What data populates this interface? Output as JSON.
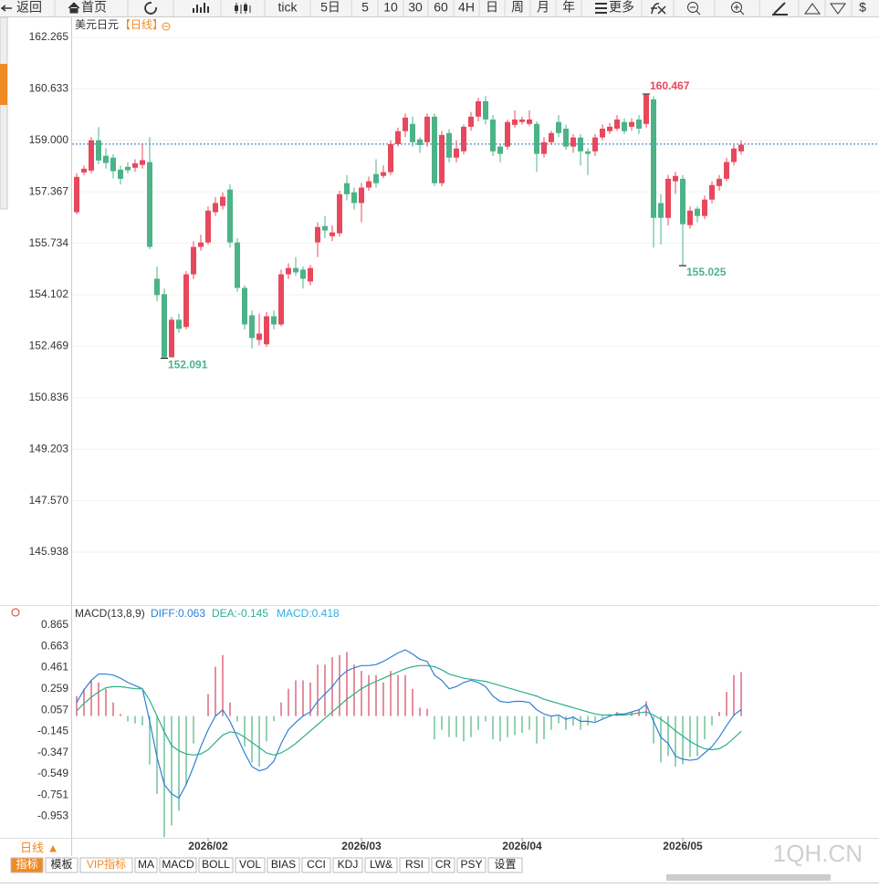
{
  "toolbar": [
    "返回",
    "首页",
    "tick",
    "5日",
    "5",
    "10",
    "30",
    "60",
    "4H",
    "日",
    "周",
    "月",
    "年",
    "更多",
    "$"
  ],
  "chart_data": [
    {
      "type": "candlestick",
      "title": "美元日元",
      "subtitle": "【日线】",
      "up_color": "#e8485c",
      "down_color": "#4cb388",
      "grid": true,
      "ylim": [
        144.26,
        162.9
      ],
      "yticks": [
        162.265,
        160.633,
        {
          "value": 159,
          "label": "159.000"
        },
        157.367,
        155.734,
        154.102,
        152.469,
        150.836,
        149.203,
        {
          "value": 147.57,
          "label": "147.570"
        },
        145.938
      ],
      "price_line": 158.88,
      "open": [
        156.72,
        157.98,
        158.04,
        159.0,
        158.51,
        158.45,
        158.07,
        158.16,
        158.13,
        158.22,
        158.31,
        154.61,
        154.12,
        152.12,
        153.31,
        153.08,
        154.75,
        155.62,
        155.76,
        156.72,
        156.92,
        157.44,
        155.76,
        154.32,
        153.45,
        152.67,
        152.53,
        153.42,
        153.16,
        154.75,
        154.95,
        154.9,
        154.52,
        155.76,
        156.28,
        155.96,
        156.05,
        157.64,
        157.35,
        157.01,
        157.5,
        157.93,
        157.87,
        157.99,
        158.88,
        159.29,
        159.52,
        159.03,
        158.94,
        159.75,
        157.64,
        159.23,
        158.45,
        158.65,
        159.43,
        159.75,
        160.24,
        159.66,
        158.8,
        158.8,
        159.49,
        159.58,
        159.52,
        159.52,
        158.57,
        158.94,
        159.58,
        159.37,
        158.8,
        159.09,
        158.65,
        158.65,
        159.09,
        159.29,
        159.37,
        159.58,
        159.43,
        159.66,
        159.52,
        160.3,
        157.01,
        156.54,
        157.7,
        157.78,
        156.31,
        156.83,
        156.6,
        157.12,
        157.55,
        157.78,
        158.31,
        158.65
      ],
      "high": [
        157.95,
        158.2,
        159.1,
        159.42,
        158.75,
        158.55,
        158.2,
        158.3,
        158.4,
        158.9,
        159.1,
        155.0,
        154.3,
        153.4,
        153.5,
        154.85,
        155.8,
        156.0,
        156.9,
        157.2,
        157.35,
        157.6,
        155.9,
        154.4,
        153.6,
        153.5,
        153.55,
        153.6,
        154.9,
        155.1,
        155.3,
        155.0,
        155.05,
        156.4,
        156.6,
        156.3,
        157.4,
        157.9,
        157.5,
        157.65,
        157.85,
        158.4,
        158.2,
        159.0,
        159.4,
        159.85,
        159.75,
        159.1,
        159.85,
        159.85,
        159.3,
        159.35,
        159.0,
        159.5,
        159.9,
        160.35,
        160.4,
        159.8,
        158.9,
        159.65,
        159.95,
        159.75,
        159.95,
        159.6,
        159.1,
        159.3,
        159.8,
        159.5,
        159.2,
        159.2,
        158.75,
        159.2,
        159.5,
        159.55,
        159.8,
        159.7,
        159.7,
        159.8,
        160.467,
        160.4,
        157.3,
        157.9,
        158.0,
        157.9,
        156.9,
        156.9,
        157.25,
        157.7,
        157.9,
        158.45,
        158.85,
        159.0
      ],
      "low": [
        156.65,
        157.9,
        157.95,
        158.25,
        158.1,
        157.8,
        157.6,
        157.95,
        158.0,
        158.1,
        155.55,
        153.9,
        152.091,
        152.1,
        152.9,
        153.0,
        154.6,
        155.5,
        155.7,
        156.6,
        156.8,
        155.6,
        154.2,
        153.0,
        152.4,
        152.5,
        152.45,
        153.0,
        153.1,
        154.6,
        154.7,
        154.3,
        154.4,
        155.3,
        155.9,
        155.8,
        155.95,
        157.1,
        156.8,
        156.4,
        157.4,
        157.5,
        157.8,
        157.9,
        158.8,
        159.1,
        158.8,
        158.6,
        158.8,
        157.55,
        157.55,
        158.3,
        158.3,
        158.55,
        159.3,
        159.6,
        159.5,
        158.5,
        158.3,
        158.7,
        159.4,
        159.5,
        159.45,
        158.0,
        158.45,
        158.85,
        159.1,
        158.7,
        158.6,
        158.2,
        157.9,
        158.5,
        159.0,
        159.2,
        159.3,
        159.2,
        159.3,
        159.2,
        159.4,
        155.6,
        155.7,
        156.3,
        157.3,
        155.025,
        156.2,
        156.4,
        156.5,
        157.0,
        157.4,
        157.7,
        158.2,
        158.55
      ],
      "close": [
        157.84,
        158.1,
        159.0,
        158.36,
        158.28,
        158.02,
        157.78,
        158.05,
        158.27,
        158.37,
        155.62,
        154.09,
        152.12,
        153.31,
        153.02,
        154.75,
        155.62,
        155.76,
        156.77,
        157.01,
        157.21,
        155.76,
        154.32,
        153.16,
        152.73,
        152.87,
        153.42,
        153.16,
        154.75,
        154.95,
        154.81,
        154.61,
        154.95,
        156.25,
        156.14,
        156.08,
        157.29,
        157.29,
        157.01,
        157.5,
        157.7,
        157.64,
        157.99,
        158.88,
        159.29,
        159.72,
        158.94,
        158.85,
        159.75,
        157.64,
        159.17,
        158.45,
        158.74,
        159.43,
        159.75,
        160.24,
        159.66,
        158.65,
        158.57,
        159.58,
        159.66,
        159.66,
        159.66,
        158.57,
        158.94,
        159.23,
        159.23,
        158.8,
        159.09,
        158.65,
        158.57,
        159.09,
        159.37,
        159.43,
        159.66,
        159.29,
        159.58,
        159.37,
        160.44,
        156.54,
        156.54,
        157.78,
        157.87,
        156.34,
        156.77,
        156.6,
        157.12,
        157.58,
        157.78,
        158.31,
        158.74,
        158.86
      ]
    },
    {
      "type": "macd",
      "title": "MACD(13,8,9)",
      "ylim": [
        -1.157,
        0.934
      ],
      "yticks": [
        0.865,
        0.663,
        0.461,
        0.259,
        0.057,
        -0.145,
        -0.347,
        -0.549,
        -0.751,
        -0.953
      ],
      "categories": [
        null,
        null,
        null,
        null,
        null,
        null,
        null,
        null,
        null,
        null,
        null,
        null,
        null,
        null,
        null,
        null,
        null,
        null,
        "2026/02",
        null,
        null,
        null,
        null,
        null,
        null,
        null,
        null,
        null,
        null,
        null,
        null,
        null,
        null,
        null,
        null,
        null,
        null,
        null,
        null,
        "2026/03",
        null,
        null,
        null,
        null,
        null,
        null,
        null,
        null,
        null,
        null,
        null,
        null,
        null,
        null,
        null,
        null,
        null,
        null,
        null,
        null,
        null,
        "2026/04",
        null,
        null,
        null,
        null,
        null,
        null,
        null,
        null,
        null,
        null,
        null,
        null,
        null,
        null,
        null,
        null,
        null,
        null,
        null,
        null,
        null,
        "2026/05",
        null,
        null,
        null,
        null,
        null,
        null,
        null,
        null
      ],
      "series": [
        {
          "name": "DIFF:0.063",
          "color": "#2f80d6",
          "values": [
            0.13,
            0.25,
            0.34,
            0.4,
            0.4,
            0.39,
            0.36,
            0.32,
            0.29,
            0.26,
            -0.05,
            -0.39,
            -0.65,
            -0.74,
            -0.78,
            -0.65,
            -0.48,
            -0.29,
            -0.13,
            0,
            0.06,
            -0.05,
            -0.2,
            -0.35,
            -0.48,
            -0.52,
            -0.5,
            -0.43,
            -0.26,
            -0.13,
            -0.06,
            0,
            0.04,
            0.14,
            0.21,
            0.28,
            0.37,
            0.43,
            0.46,
            0.48,
            0.48,
            0.49,
            0.52,
            0.56,
            0.6,
            0.63,
            0.59,
            0.54,
            0.52,
            0.39,
            0.34,
            0.26,
            0.28,
            0.32,
            0.34,
            0.32,
            0.28,
            0.19,
            0.14,
            0.13,
            0.14,
            0.14,
            0.13,
            0.06,
            0.02,
            0,
            0.01,
            -0.03,
            -0.01,
            -0.05,
            -0.05,
            -0.06,
            -0.03,
            0,
            0.02,
            0.02,
            0.04,
            0.06,
            0.11,
            -0.05,
            -0.2,
            -0.26,
            -0.38,
            -0.41,
            -0.42,
            -0.41,
            -0.35,
            -0.29,
            -0.2,
            -0.09,
            0.01,
            0.063
          ]
        },
        {
          "name": "DEA:-0.145",
          "color": "#2fae8a",
          "values": [
            0.05,
            0.12,
            0.18,
            0.23,
            0.27,
            0.28,
            0.28,
            0.27,
            0.26,
            0.26,
            0.15,
            0,
            -0.15,
            -0.28,
            -0.33,
            -0.36,
            -0.37,
            -0.36,
            -0.32,
            -0.25,
            -0.18,
            -0.15,
            -0.16,
            -0.2,
            -0.25,
            -0.3,
            -0.35,
            -0.37,
            -0.35,
            -0.31,
            -0.26,
            -0.2,
            -0.14,
            -0.08,
            -0.02,
            0.04,
            0.1,
            0.16,
            0.21,
            0.26,
            0.3,
            0.33,
            0.36,
            0.39,
            0.42,
            0.45,
            0.47,
            0.48,
            0.48,
            0.47,
            0.44,
            0.4,
            0.38,
            0.36,
            0.35,
            0.34,
            0.33,
            0.31,
            0.29,
            0.27,
            0.25,
            0.23,
            0.21,
            0.19,
            0.16,
            0.14,
            0.12,
            0.1,
            0.08,
            0.06,
            0.04,
            0.02,
            0.01,
            0.01,
            0.01,
            0.01,
            0.02,
            0.03,
            0.04,
            0.01,
            -0.03,
            -0.08,
            -0.14,
            -0.19,
            -0.24,
            -0.28,
            -0.31,
            -0.32,
            -0.31,
            -0.27,
            -0.21,
            -0.145
          ]
        }
      ],
      "histogram": {
        "name": "MACD:0.418",
        "up_color": "#d9536a",
        "down_color": "#5cb88a",
        "values": [
          0.19,
          0.26,
          0.34,
          0.32,
          0.26,
          0.13,
          0.02,
          -0.05,
          -0.07,
          -0.09,
          -0.46,
          -0.74,
          -1.15,
          -1.04,
          -0.9,
          -0.65,
          -0.26,
          0,
          0.21,
          0.47,
          0.58,
          0.13,
          -0.05,
          -0.29,
          -0.44,
          -0.48,
          -0.24,
          -0.05,
          0.13,
          0.26,
          0.34,
          0.34,
          0.32,
          0.49,
          0.49,
          0.56,
          0.58,
          0.61,
          0.49,
          0.43,
          0.39,
          0.39,
          0.32,
          0.43,
          0.39,
          0.39,
          0.26,
          0.08,
          0.07,
          -0.22,
          -0.13,
          -0.2,
          -0.2,
          -0.24,
          -0.2,
          -0.13,
          -0.05,
          -0.22,
          -0.24,
          -0.2,
          -0.18,
          -0.16,
          -0.13,
          -0.26,
          -0.22,
          -0.13,
          -0.07,
          -0.13,
          -0.09,
          -0.13,
          -0.09,
          -0.05,
          -0.02,
          0.02,
          0.04,
          0,
          0.04,
          0.06,
          0.14,
          -0.26,
          -0.44,
          -0.38,
          -0.48,
          -0.46,
          -0.39,
          -0.38,
          -0.22,
          -0.09,
          0.04,
          0.23,
          0.39,
          0.418
        ]
      }
    }
  ],
  "period_tab": "日线 ▲",
  "tabs": [
    "指标",
    "模板",
    "VIP指标",
    "MA",
    "MACD",
    "BOLL",
    "VOL",
    "BIAS",
    "CCI",
    "KDJ",
    "LW&",
    "RSI",
    "CR",
    "PSY",
    "设置"
  ],
  "watermark": "1QH.CN"
}
